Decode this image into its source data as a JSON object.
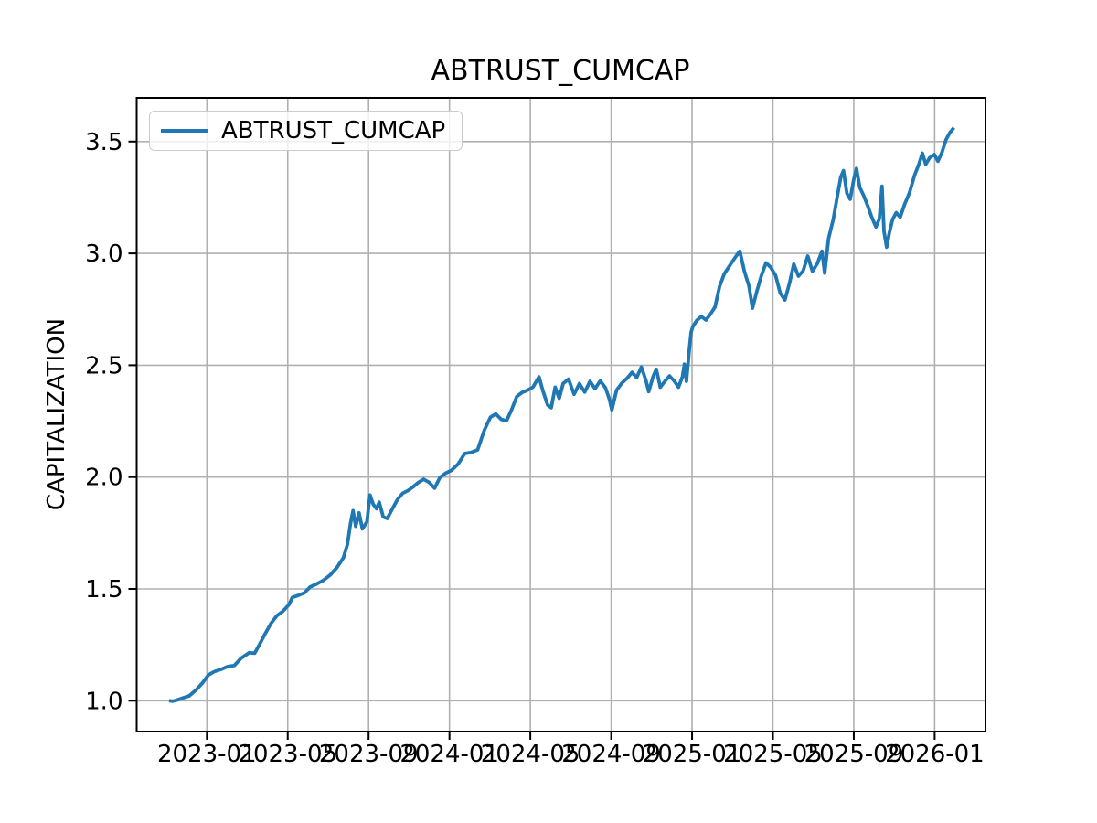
{
  "chart_data": {
    "type": "line",
    "title": "ABTRUST_CUMCAP",
    "xlabel": "",
    "ylabel": "CAPITALIZATION",
    "grid": true,
    "legend": {
      "position": "upper left"
    },
    "colors": {
      "line": "#1f77b4",
      "grid": "#b0b0b0",
      "spine": "#000000",
      "legend_border": "#cccccc"
    },
    "ylim": [
      0.86,
      3.7
    ],
    "xlim": [
      "2022-09-17",
      "2026-03-17"
    ],
    "y_ticks": [
      "1.0",
      "1.5",
      "2.0",
      "2.5",
      "3.0",
      "3.5"
    ],
    "x_ticks": [
      "2023-01",
      "2023-05",
      "2023-09",
      "2024-01",
      "2024-05",
      "2024-09",
      "2025-01",
      "2025-05",
      "2025-09",
      "2026-01"
    ],
    "series": [
      {
        "name": "ABTRUST_CUMCAP",
        "color": "#1f77b4",
        "points": [
          [
            "2022-11-05",
            1.0
          ],
          [
            "2022-11-10",
            0.998
          ],
          [
            "2022-11-16",
            1.002
          ],
          [
            "2022-11-25",
            1.012
          ],
          [
            "2022-12-05",
            1.022
          ],
          [
            "2022-12-15",
            1.048
          ],
          [
            "2022-12-25",
            1.08
          ],
          [
            "2023-01-03",
            1.115
          ],
          [
            "2023-01-12",
            1.13
          ],
          [
            "2023-01-22",
            1.14
          ],
          [
            "2023-02-01",
            1.152
          ],
          [
            "2023-02-12",
            1.158
          ],
          [
            "2023-02-22",
            1.19
          ],
          [
            "2023-03-04",
            1.215
          ],
          [
            "2023-03-12",
            1.212
          ],
          [
            "2023-03-20",
            1.255
          ],
          [
            "2023-03-28",
            1.3
          ],
          [
            "2023-04-06",
            1.345
          ],
          [
            "2023-04-15",
            1.38
          ],
          [
            "2023-04-24",
            1.4
          ],
          [
            "2023-05-03",
            1.43
          ],
          [
            "2023-05-08",
            1.462
          ],
          [
            "2023-05-16",
            1.47
          ],
          [
            "2023-05-26",
            1.482
          ],
          [
            "2023-06-04",
            1.508
          ],
          [
            "2023-06-14",
            1.522
          ],
          [
            "2023-06-24",
            1.538
          ],
          [
            "2023-07-04",
            1.562
          ],
          [
            "2023-07-14",
            1.595
          ],
          [
            "2023-07-24",
            1.64
          ],
          [
            "2023-07-30",
            1.7
          ],
          [
            "2023-08-04",
            1.79
          ],
          [
            "2023-08-08",
            1.85
          ],
          [
            "2023-08-12",
            1.78
          ],
          [
            "2023-08-17",
            1.84
          ],
          [
            "2023-08-22",
            1.768
          ],
          [
            "2023-08-29",
            1.8
          ],
          [
            "2023-09-03",
            1.92
          ],
          [
            "2023-09-08",
            1.878
          ],
          [
            "2023-09-13",
            1.858
          ],
          [
            "2023-09-17",
            1.888
          ],
          [
            "2023-09-23",
            1.822
          ],
          [
            "2023-09-29",
            1.815
          ],
          [
            "2023-10-06",
            1.856
          ],
          [
            "2023-10-14",
            1.9
          ],
          [
            "2023-10-22",
            1.928
          ],
          [
            "2023-10-30",
            1.94
          ],
          [
            "2023-11-07",
            1.956
          ],
          [
            "2023-11-15",
            1.976
          ],
          [
            "2023-11-23",
            1.99
          ],
          [
            "2023-12-01",
            1.976
          ],
          [
            "2023-12-09",
            1.95
          ],
          [
            "2023-12-17",
            1.998
          ],
          [
            "2023-12-26",
            2.018
          ],
          [
            "2024-01-04",
            2.03
          ],
          [
            "2024-01-14",
            2.058
          ],
          [
            "2024-01-24",
            2.105
          ],
          [
            "2024-02-03",
            2.11
          ],
          [
            "2024-02-13",
            2.122
          ],
          [
            "2024-02-23",
            2.21
          ],
          [
            "2024-03-02",
            2.268
          ],
          [
            "2024-03-10",
            2.282
          ],
          [
            "2024-03-18",
            2.258
          ],
          [
            "2024-03-26",
            2.252
          ],
          [
            "2024-04-03",
            2.3
          ],
          [
            "2024-04-11",
            2.36
          ],
          [
            "2024-04-19",
            2.378
          ],
          [
            "2024-04-27",
            2.388
          ],
          [
            "2024-05-05",
            2.402
          ],
          [
            "2024-05-14",
            2.448
          ],
          [
            "2024-05-20",
            2.385
          ],
          [
            "2024-05-27",
            2.322
          ],
          [
            "2024-06-02",
            2.31
          ],
          [
            "2024-06-08",
            2.402
          ],
          [
            "2024-06-14",
            2.352
          ],
          [
            "2024-06-20",
            2.418
          ],
          [
            "2024-06-28",
            2.438
          ],
          [
            "2024-07-06",
            2.37
          ],
          [
            "2024-07-14",
            2.418
          ],
          [
            "2024-07-22",
            2.38
          ],
          [
            "2024-07-30",
            2.428
          ],
          [
            "2024-08-07",
            2.395
          ],
          [
            "2024-08-15",
            2.43
          ],
          [
            "2024-08-23",
            2.398
          ],
          [
            "2024-08-29",
            2.345
          ],
          [
            "2024-09-02",
            2.3
          ],
          [
            "2024-09-09",
            2.388
          ],
          [
            "2024-09-17",
            2.42
          ],
          [
            "2024-09-25",
            2.442
          ],
          [
            "2024-10-02",
            2.468
          ],
          [
            "2024-10-09",
            2.445
          ],
          [
            "2024-10-16",
            2.492
          ],
          [
            "2024-10-23",
            2.43
          ],
          [
            "2024-10-27",
            2.382
          ],
          [
            "2024-11-03",
            2.448
          ],
          [
            "2024-11-08",
            2.482
          ],
          [
            "2024-11-14",
            2.402
          ],
          [
            "2024-11-21",
            2.428
          ],
          [
            "2024-11-28",
            2.452
          ],
          [
            "2024-12-05",
            2.428
          ],
          [
            "2024-12-11",
            2.402
          ],
          [
            "2024-12-17",
            2.448
          ],
          [
            "2024-12-20",
            2.505
          ],
          [
            "2024-12-23",
            2.428
          ],
          [
            "2024-12-27",
            2.56
          ],
          [
            "2024-12-30",
            2.648
          ],
          [
            "2025-01-02",
            2.672
          ],
          [
            "2025-01-08",
            2.7
          ],
          [
            "2025-01-15",
            2.718
          ],
          [
            "2025-01-22",
            2.702
          ],
          [
            "2025-01-29",
            2.73
          ],
          [
            "2025-02-05",
            2.76
          ],
          [
            "2025-02-12",
            2.852
          ],
          [
            "2025-02-19",
            2.908
          ],
          [
            "2025-02-26",
            2.94
          ],
          [
            "2025-03-05",
            2.982
          ],
          [
            "2025-03-12",
            3.01
          ],
          [
            "2025-03-19",
            2.92
          ],
          [
            "2025-03-26",
            2.852
          ],
          [
            "2025-03-31",
            2.755
          ],
          [
            "2025-04-07",
            2.828
          ],
          [
            "2025-04-14",
            2.9
          ],
          [
            "2025-04-21",
            2.958
          ],
          [
            "2025-04-28",
            2.938
          ],
          [
            "2025-05-05",
            2.902
          ],
          [
            "2025-05-12",
            2.822
          ],
          [
            "2025-05-19",
            2.792
          ],
          [
            "2025-05-26",
            2.868
          ],
          [
            "2025-06-02",
            2.952
          ],
          [
            "2025-06-09",
            2.898
          ],
          [
            "2025-06-16",
            2.922
          ],
          [
            "2025-06-23",
            2.988
          ],
          [
            "2025-06-30",
            2.92
          ],
          [
            "2025-07-07",
            2.955
          ],
          [
            "2025-07-14",
            3.01
          ],
          [
            "2025-07-18",
            2.912
          ],
          [
            "2025-07-24",
            3.068
          ],
          [
            "2025-07-31",
            3.152
          ],
          [
            "2025-08-07",
            3.262
          ],
          [
            "2025-08-12",
            3.342
          ],
          [
            "2025-08-16",
            3.37
          ],
          [
            "2025-08-21",
            3.268
          ],
          [
            "2025-08-26",
            3.242
          ],
          [
            "2025-09-01",
            3.33
          ],
          [
            "2025-09-05",
            3.38
          ],
          [
            "2025-09-10",
            3.295
          ],
          [
            "2025-09-16",
            3.258
          ],
          [
            "2025-09-22",
            3.212
          ],
          [
            "2025-09-28",
            3.162
          ],
          [
            "2025-10-04",
            3.118
          ],
          [
            "2025-10-09",
            3.155
          ],
          [
            "2025-10-13",
            3.3
          ],
          [
            "2025-10-16",
            3.098
          ],
          [
            "2025-10-20",
            3.028
          ],
          [
            "2025-10-24",
            3.092
          ],
          [
            "2025-10-29",
            3.152
          ],
          [
            "2025-11-04",
            3.182
          ],
          [
            "2025-11-10",
            3.162
          ],
          [
            "2025-11-17",
            3.222
          ],
          [
            "2025-11-24",
            3.272
          ],
          [
            "2025-12-01",
            3.348
          ],
          [
            "2025-12-08",
            3.402
          ],
          [
            "2025-12-13",
            3.448
          ],
          [
            "2025-12-18",
            3.398
          ],
          [
            "2025-12-24",
            3.428
          ],
          [
            "2025-12-31",
            3.442
          ],
          [
            "2026-01-06",
            3.412
          ],
          [
            "2026-01-12",
            3.452
          ],
          [
            "2026-01-18",
            3.508
          ],
          [
            "2026-01-24",
            3.54
          ],
          [
            "2026-01-30",
            3.562
          ]
        ]
      }
    ]
  }
}
